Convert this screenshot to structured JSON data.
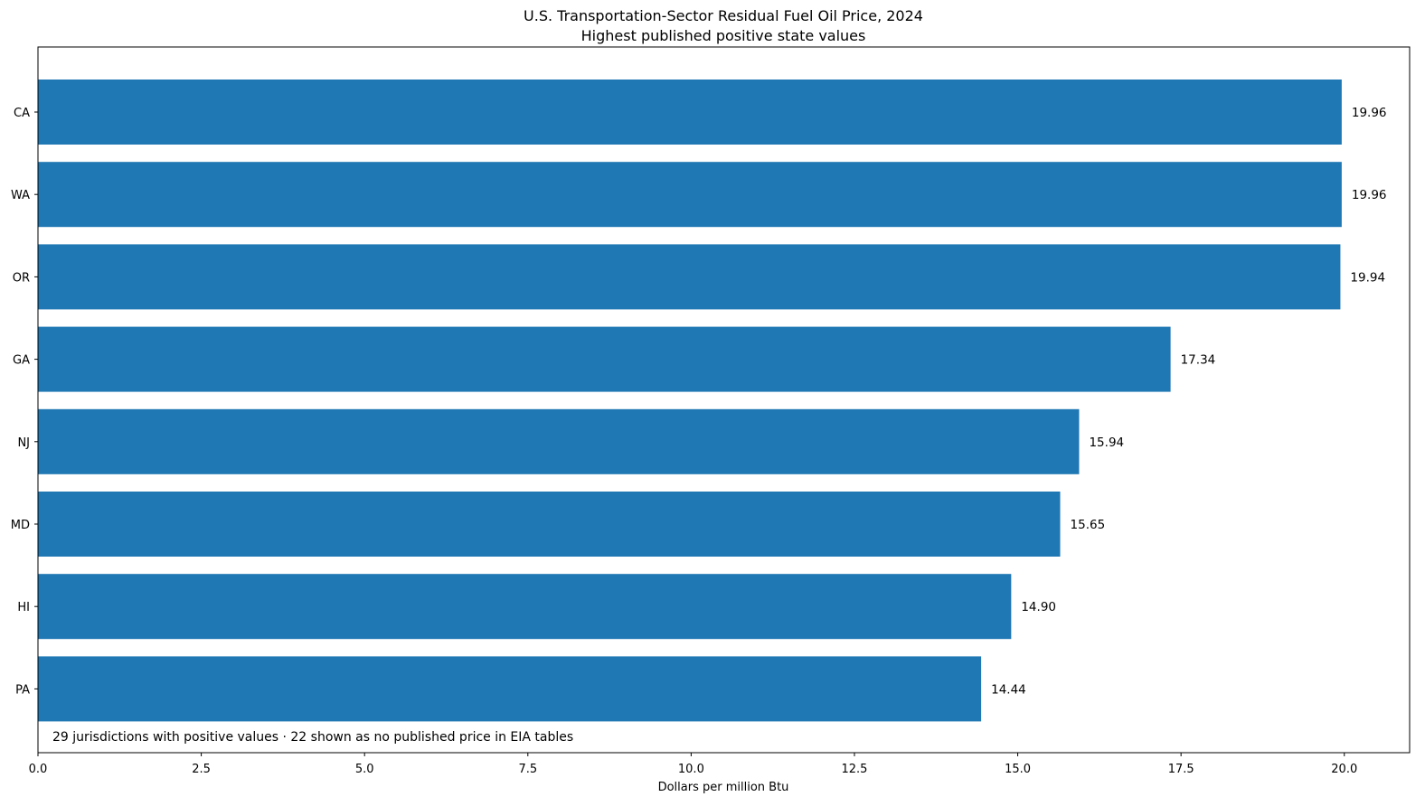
{
  "chart_data": {
    "type": "bar",
    "orientation": "horizontal",
    "title": "U.S. Transportation-Sector Residual Fuel Oil Price, 2024",
    "subtitle": "Highest published positive state values",
    "xlabel": "Dollars per million Btu",
    "ylabel": "",
    "xlim": [
      0,
      21
    ],
    "xticks": [
      0,
      2.5,
      5,
      7.5,
      10,
      12.5,
      15,
      17.5,
      20
    ],
    "xtick_labels": [
      "0.0",
      "2.5",
      "5.0",
      "7.5",
      "10.0",
      "12.5",
      "15.0",
      "17.5",
      "20.0"
    ],
    "categories": [
      "CA",
      "WA",
      "OR",
      "GA",
      "NJ",
      "MD",
      "HI",
      "PA"
    ],
    "values": [
      19.96,
      19.96,
      19.94,
      17.34,
      15.94,
      15.65,
      14.9,
      14.44
    ],
    "value_labels": [
      "19.96",
      "19.96",
      "19.94",
      "17.34",
      "15.94",
      "15.65",
      "14.90",
      "14.44"
    ],
    "annotation": "29 jurisdictions with positive values · 22 shown as no published price in EIA tables",
    "bar_color": "#1f77b4",
    "grid": false,
    "legend": "none"
  }
}
